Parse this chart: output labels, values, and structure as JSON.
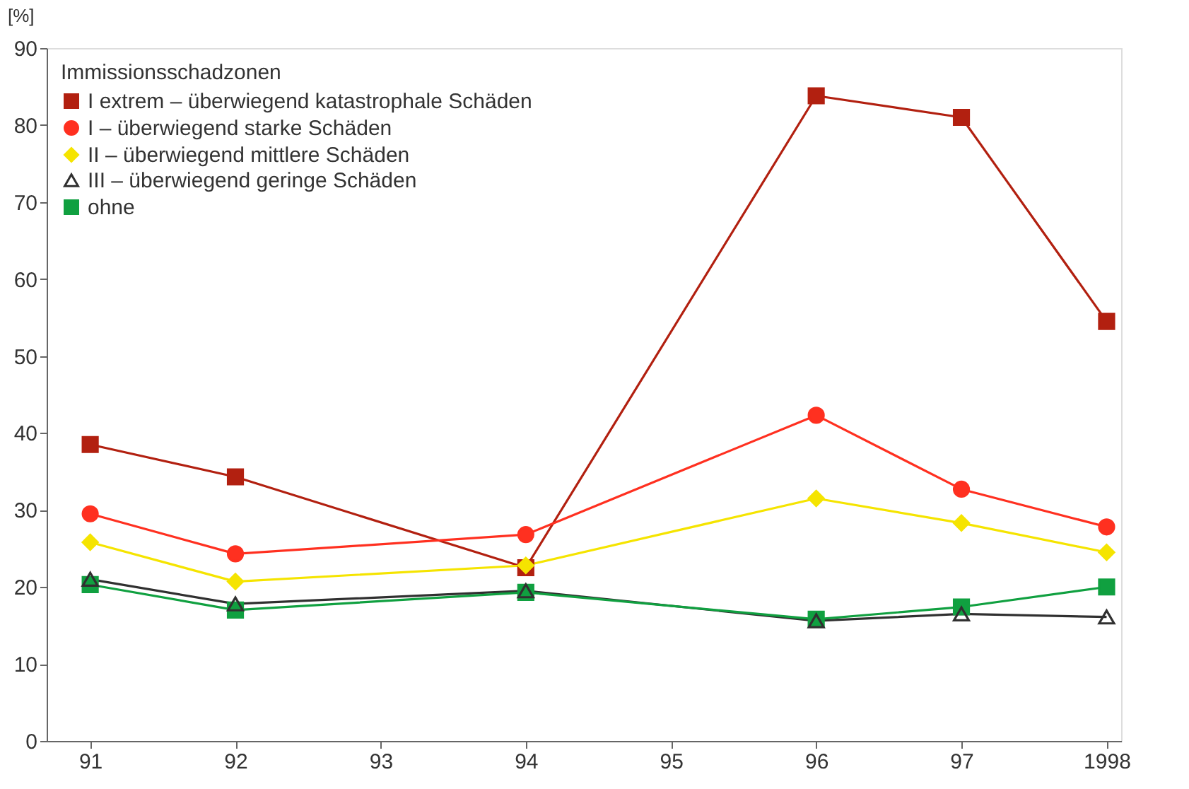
{
  "chart_data": {
    "type": "line",
    "ylabel": "[%]",
    "legend_title": "Immissionsschadzonen",
    "legend": "top left",
    "grid": false,
    "x": [
      1991,
      1992,
      1994,
      1996,
      1997,
      1998
    ],
    "xlim": [
      1990.7,
      1998.1
    ],
    "xticks": [
      {
        "value": 1991,
        "label": "91"
      },
      {
        "value": 1992,
        "label": "92"
      },
      {
        "value": 1993,
        "label": "93"
      },
      {
        "value": 1994,
        "label": "94"
      },
      {
        "value": 1995,
        "label": "95"
      },
      {
        "value": 1996,
        "label": "96"
      },
      {
        "value": 1997,
        "label": "97"
      },
      1998
    ],
    "ylim": [
      0,
      90
    ],
    "yticks": [
      0,
      10,
      20,
      30,
      40,
      50,
      60,
      70,
      80,
      90
    ],
    "series": [
      {
        "name": "I extrem – überwiegend katastrophale Schäden",
        "color": "#b22010",
        "marker": "square",
        "values": [
          38.5,
          34.3,
          22.5,
          83.8,
          81,
          54.5
        ]
      },
      {
        "name": "I – überwiegend starke Schäden",
        "color": "#ff3020",
        "marker": "circle",
        "values": [
          29.5,
          24.3,
          26.8,
          42.3,
          32.7,
          27.8
        ]
      },
      {
        "name": "II – überwiegend mittlere Schäden",
        "color": "#f5e400",
        "marker": "diamond",
        "values": [
          25.8,
          20.7,
          22.8,
          31.5,
          28.3,
          24.5
        ]
      },
      {
        "name": "III – überwiegend geringe Schäden",
        "color": "#303030",
        "marker": "triangle",
        "values": [
          21,
          17.8,
          19.5,
          15.6,
          16.5,
          16.1
        ]
      },
      {
        "name": "ohne",
        "color": "#10a040",
        "marker": "square",
        "values": [
          20.3,
          17,
          19.3,
          15.8,
          17.4,
          20
        ]
      }
    ]
  }
}
